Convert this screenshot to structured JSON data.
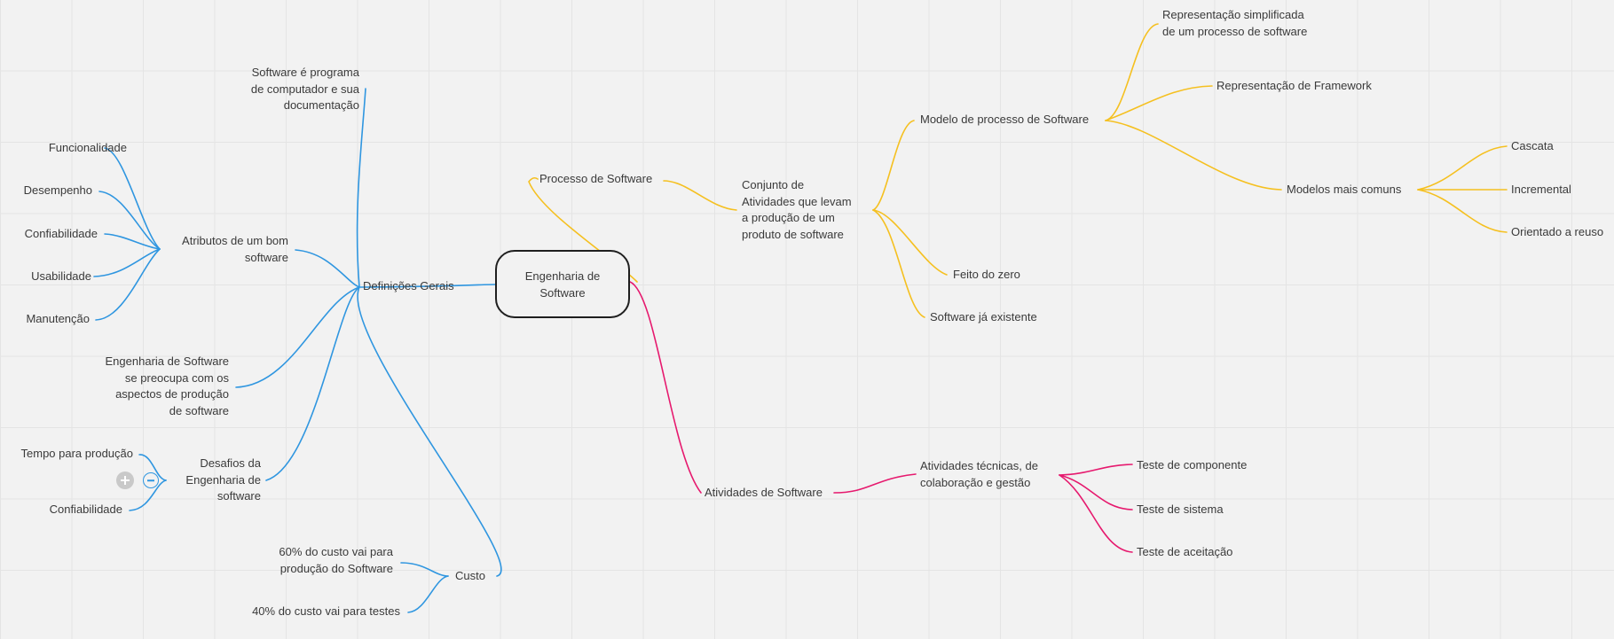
{
  "colors": {
    "blue_branch": "#2f96e0",
    "yellow_branch": "#f5c020",
    "pink_branch": "#e6196e",
    "root_border": "#1f1f1f",
    "text": "#3a3a3a",
    "background": "#f2f2f2"
  },
  "icons": {
    "add": "plus-icon",
    "collapse": "minus-icon"
  },
  "root": {
    "lines": [
      "Engenharia de",
      "Software"
    ]
  },
  "nodes": {
    "definicoes_gerais": {
      "lines": [
        "Definições Gerais"
      ]
    },
    "software_e_programa": {
      "lines": [
        "Software é programa",
        "de computador e sua",
        "documentação"
      ]
    },
    "atributos": {
      "lines": [
        "Atributos de um bom",
        "software"
      ]
    },
    "funcionalidade": {
      "lines": [
        "Funcionalidade"
      ]
    },
    "desempenho": {
      "lines": [
        "Desempenho"
      ]
    },
    "confiabilidade_attr": {
      "lines": [
        "Confiabilidade"
      ]
    },
    "usabilidade": {
      "lines": [
        "Usabilidade"
      ]
    },
    "manutencao": {
      "lines": [
        "Manutenção"
      ]
    },
    "eng_preocupa": {
      "lines": [
        "Engenharia de Software",
        "se preocupa com os",
        "aspectos de produção",
        "de software"
      ]
    },
    "desafios": {
      "lines": [
        "Desafios da",
        "Engenharia de",
        "software"
      ]
    },
    "tempo_producao": {
      "lines": [
        "Tempo para produção"
      ]
    },
    "confiabilidade_desafio": {
      "lines": [
        "Confiabilidade"
      ]
    },
    "custo": {
      "lines": [
        "Custo"
      ]
    },
    "custo_60": {
      "lines": [
        "60%  do custo vai para",
        "produção do Software"
      ]
    },
    "custo_40": {
      "lines": [
        "40%  do custo vai para testes"
      ]
    },
    "processo": {
      "lines": [
        "Processo de Software"
      ]
    },
    "conjunto": {
      "lines": [
        "Conjunto de",
        "Atividades que levam",
        "a produção de um",
        "produto de software"
      ]
    },
    "modelo_processo": {
      "lines": [
        "Modelo de processo de Software"
      ]
    },
    "repr_simplificada": {
      "lines": [
        "Representação simplificada",
        "de um processo de software"
      ]
    },
    "repr_framework": {
      "lines": [
        "Representação de Framework"
      ]
    },
    "modelos_comuns": {
      "lines": [
        "Modelos mais comuns"
      ]
    },
    "cascata": {
      "lines": [
        "Cascata"
      ]
    },
    "incremental": {
      "lines": [
        "Incremental"
      ]
    },
    "orientado_reuso": {
      "lines": [
        "Orientado a reuso"
      ]
    },
    "feito_zero": {
      "lines": [
        "Feito do zero"
      ]
    },
    "software_existente": {
      "lines": [
        "Software já existente"
      ]
    },
    "atividades": {
      "lines": [
        "Atividades de Software"
      ]
    },
    "atividades_tecnicas": {
      "lines": [
        "Atividades técnicas, de",
        "colaboração e gestão"
      ]
    },
    "teste_componente": {
      "lines": [
        "Teste de componente"
      ]
    },
    "teste_sistema": {
      "lines": [
        "Teste de sistema"
      ]
    },
    "teste_aceitacao": {
      "lines": [
        "Teste de aceitação"
      ]
    }
  }
}
